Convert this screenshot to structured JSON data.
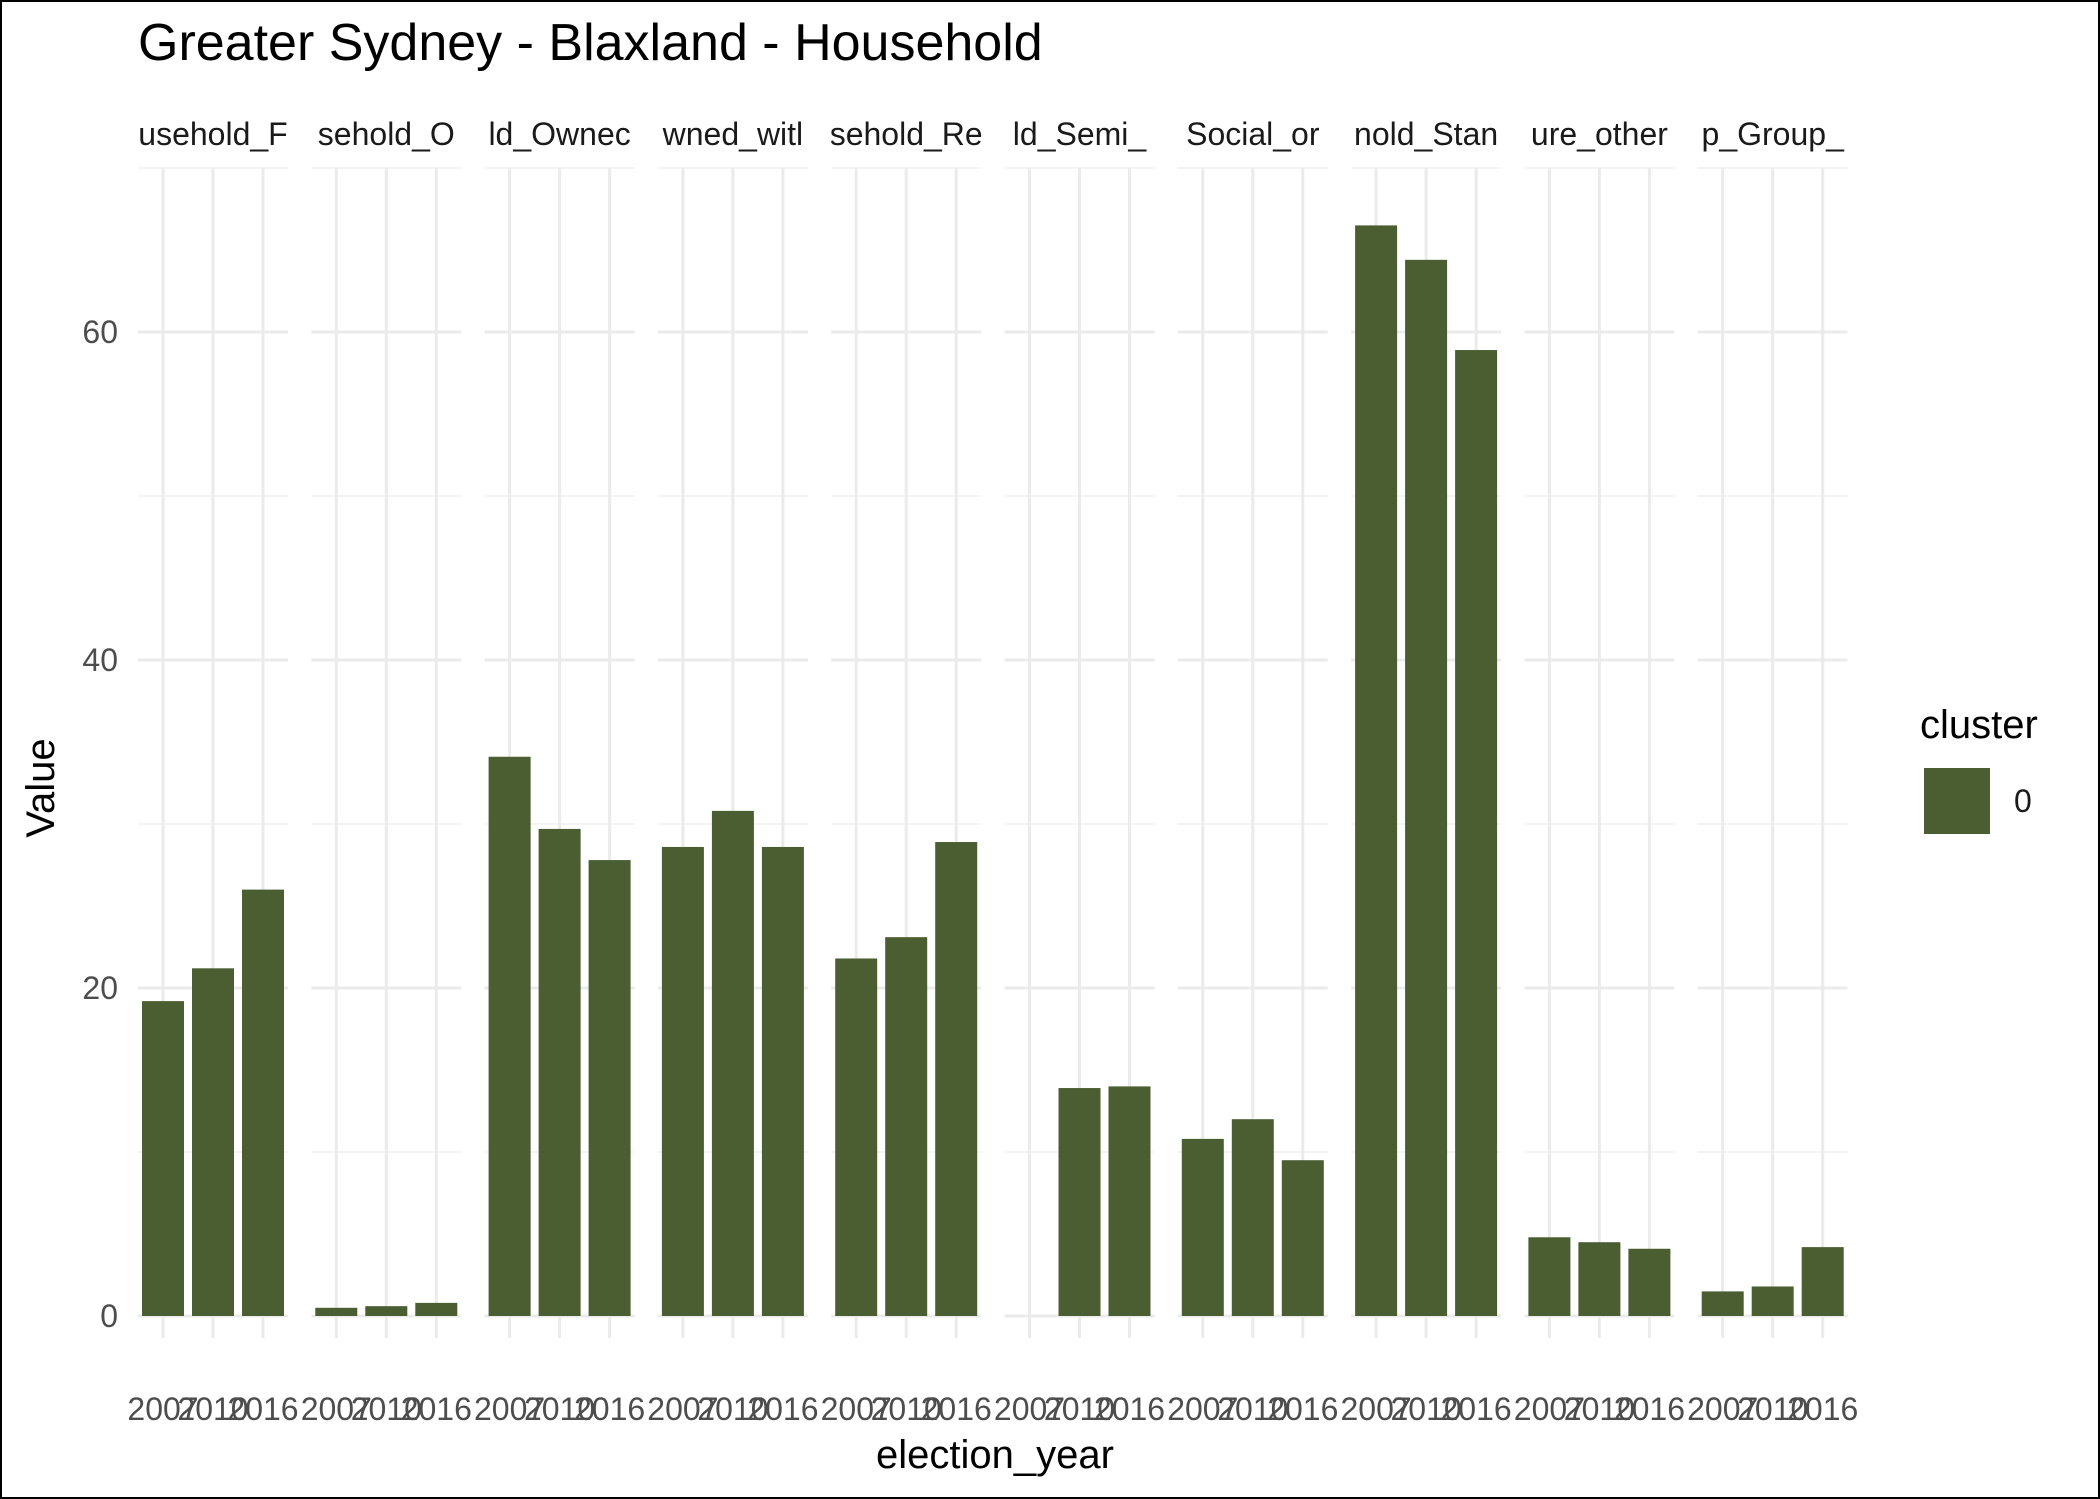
{
  "chart_data": {
    "type": "bar",
    "title": "Greater Sydney - Blaxland - Household",
    "xlabel": "election_year",
    "ylabel": "Value",
    "ylim": [
      0,
      70
    ],
    "y_ticks": [
      0,
      20,
      40,
      60
    ],
    "grid": true,
    "categories": [
      "2007",
      "2010",
      "2016"
    ],
    "facets": [
      {
        "label": "usehold_F",
        "values": [
          19.2,
          21.2,
          26.0
        ]
      },
      {
        "label": "sehold_O",
        "values": [
          0.5,
          0.6,
          0.8
        ]
      },
      {
        "label": "ld_Ownec",
        "values": [
          34.1,
          29.7,
          27.8
        ]
      },
      {
        "label": "wned_witl",
        "values": [
          28.6,
          30.8,
          28.6
        ]
      },
      {
        "label": "sehold_Re",
        "values": [
          21.8,
          23.1,
          28.9
        ]
      },
      {
        "label": "ld_Semi_",
        "values": [
          null,
          13.9,
          14.0
        ]
      },
      {
        "label": "Social_or",
        "values": [
          10.8,
          12.0,
          9.5
        ]
      },
      {
        "label": "nold_Stan",
        "values": [
          66.5,
          64.4,
          58.9
        ]
      },
      {
        "label": "ure_other",
        "values": [
          4.8,
          4.5,
          4.1
        ]
      },
      {
        "label": "p_Group_",
        "values": [
          1.5,
          1.8,
          4.2
        ]
      }
    ],
    "legend": {
      "title": "cluster",
      "items": [
        {
          "label": "0",
          "color": "#4a5e31"
        }
      ],
      "position": "right"
    },
    "bar_color": "#4a5e31"
  }
}
